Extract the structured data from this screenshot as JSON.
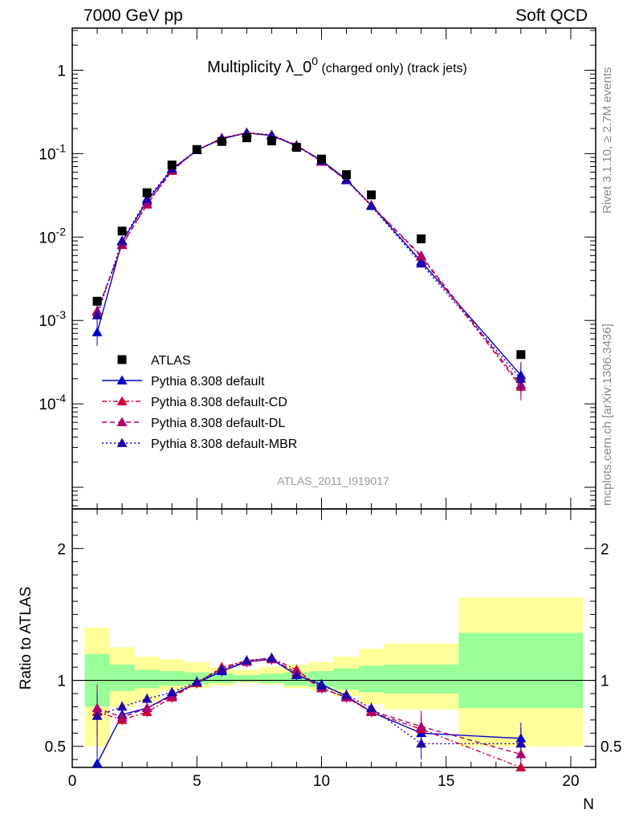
{
  "header": {
    "left": "7000 GeV pp",
    "right": "Soft QCD"
  },
  "side_labels": {
    "rivet": "Rivet 3.1.10, ≥ 2.7M events",
    "mcplots": "mcplots.cern.ch [arXiv:1306.3436]"
  },
  "chart_data": {
    "type": "line",
    "title_main": "Multiplicity λ_0",
    "title_sup": "0",
    "title_rest": " (charged only) (track jets)",
    "watermark": "ATLAS_2011_I919017",
    "xlabel": "N",
    "ratio_ylabel": "Ratio to ATLAS",
    "xlim": [
      0,
      21
    ],
    "ylim_main": [
      5.5e-06,
      3.2
    ],
    "ylim_ratio": [
      0.34,
      2.3
    ],
    "y_scale_main": "log",
    "x_ticks": [
      "0",
      "5",
      "10",
      "15",
      "20"
    ],
    "y_ticks_main": [
      "1",
      "10^-1",
      "10^-2",
      "10^-3",
      "10^-4"
    ],
    "y_ticks_ratio": [
      "2",
      "1",
      "0.5"
    ],
    "legend_position": "bottom-left",
    "data": {
      "name": "ATLAS",
      "x": [
        1,
        2,
        3,
        4,
        5,
        6,
        7,
        8,
        9,
        10,
        11,
        12,
        14,
        18
      ],
      "y": [
        0.0017,
        0.0118,
        0.034,
        0.073,
        0.112,
        0.14,
        0.155,
        0.142,
        0.119,
        0.086,
        0.056,
        0.032,
        0.0095,
        0.00039
      ]
    },
    "series": [
      {
        "name": "Pythia 8.308 default",
        "color": "#0000cc",
        "dash": "",
        "x": [
          1,
          2,
          3,
          4,
          5,
          6,
          7,
          8,
          9,
          10,
          11,
          12,
          14,
          18
        ],
        "y": [
          0.00072,
          0.0088,
          0.027,
          0.065,
          0.11,
          0.15,
          0.177,
          0.165,
          0.124,
          0.083,
          0.049,
          0.024,
          0.0051,
          0.00022
        ],
        "ratio": [
          0.37,
          0.74,
          0.79,
          0.89,
          0.98,
          1.07,
          1.14,
          1.16,
          1.04,
          0.97,
          0.88,
          0.76,
          0.6,
          0.56
        ]
      },
      {
        "name": "Pythia 8.308 default-CD",
        "color": "#cc0033",
        "dash": "6,3,2,3",
        "x": [
          1,
          2,
          3,
          4,
          5,
          6,
          7,
          8,
          9,
          10,
          11,
          12,
          14,
          18
        ],
        "y": [
          0.00125,
          0.008,
          0.0245,
          0.062,
          0.11,
          0.154,
          0.178,
          0.167,
          0.127,
          0.08,
          0.048,
          0.024,
          0.0058,
          0.00016
        ],
        "ratio": [
          0.76,
          0.7,
          0.76,
          0.87,
          0.98,
          1.1,
          1.15,
          1.17,
          1.08,
          0.94,
          0.87,
          0.76,
          0.63,
          0.34
        ]
      },
      {
        "name": "Pythia 8.308 default-DL",
        "color": "#b0006a",
        "dash": "6,4",
        "x": [
          1,
          2,
          3,
          4,
          5,
          6,
          7,
          8,
          9,
          10,
          11,
          12,
          14,
          18
        ],
        "y": [
          0.0013,
          0.0081,
          0.025,
          0.0625,
          0.11,
          0.153,
          0.177,
          0.166,
          0.125,
          0.08,
          0.048,
          0.024,
          0.006,
          0.00017
        ],
        "ratio": [
          0.79,
          0.72,
          0.79,
          0.88,
          0.98,
          1.09,
          1.14,
          1.16,
          1.06,
          0.94,
          0.87,
          0.77,
          0.65,
          0.44
        ]
      },
      {
        "name": "Pythia 8.308 default-MBR",
        "color": "#2200aa",
        "dash": "2,3",
        "x": [
          1,
          2,
          3,
          4,
          5,
          6,
          7,
          8,
          9,
          10,
          11,
          12,
          14,
          18
        ],
        "y": [
          0.00115,
          0.009,
          0.0285,
          0.066,
          0.11,
          0.152,
          0.178,
          0.168,
          0.123,
          0.082,
          0.048,
          0.0235,
          0.0048,
          0.0002
        ],
        "ratio": [
          0.73,
          0.8,
          0.86,
          0.91,
          0.99,
          1.08,
          1.15,
          1.17,
          1.04,
          0.96,
          0.89,
          0.79,
          0.52,
          0.52
        ]
      }
    ],
    "ratio_bands": {
      "edges": [
        0.5,
        1.5,
        2.5,
        3.5,
        4.5,
        5.5,
        6.5,
        7.5,
        8.5,
        9.5,
        10.5,
        11.5,
        12.5,
        15.5,
        20.5
      ],
      "yellow_lo": [
        0.5,
        0.8,
        0.84,
        0.92,
        0.94,
        0.96,
        0.98,
        0.97,
        0.94,
        0.92,
        0.88,
        0.82,
        0.78,
        0.5
      ],
      "yellow_hi": [
        1.4,
        1.25,
        1.18,
        1.16,
        1.14,
        1.1,
        1.08,
        1.1,
        1.12,
        1.14,
        1.18,
        1.24,
        1.28,
        1.63
      ],
      "green_lo": [
        0.8,
        0.92,
        0.94,
        0.96,
        0.97,
        0.98,
        0.99,
        0.98,
        0.96,
        0.95,
        0.93,
        0.91,
        0.9,
        0.79
      ],
      "green_hi": [
        1.2,
        1.12,
        1.08,
        1.07,
        1.06,
        1.05,
        1.04,
        1.05,
        1.06,
        1.07,
        1.09,
        1.11,
        1.12,
        1.36
      ]
    }
  }
}
